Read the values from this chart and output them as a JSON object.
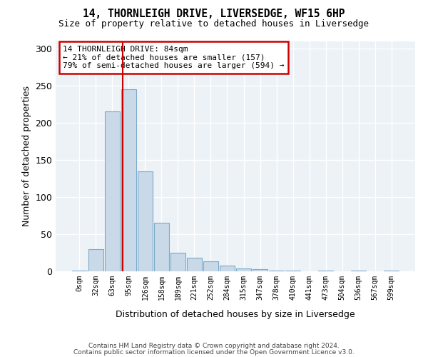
{
  "title": "14, THORNLEIGH DRIVE, LIVERSEDGE, WF15 6HP",
  "subtitle": "Size of property relative to detached houses in Liversedge",
  "xlabel": "Distribution of detached houses by size in Liversedge",
  "ylabel": "Number of detached properties",
  "bar_values": [
    1,
    30,
    215,
    245,
    135,
    65,
    25,
    18,
    13,
    8,
    4,
    3,
    1,
    1,
    0,
    1,
    0,
    1,
    0,
    1
  ],
  "bar_labels": [
    "0sqm",
    "32sqm",
    "63sqm",
    "95sqm",
    "126sqm",
    "158sqm",
    "189sqm",
    "221sqm",
    "252sqm",
    "284sqm",
    "315sqm",
    "347sqm",
    "378sqm",
    "410sqm",
    "441sqm",
    "473sqm",
    "504sqm",
    "536sqm",
    "567sqm",
    "599sqm"
  ],
  "bar_color": "#c9d9e8",
  "bar_edge_color": "#7aaacb",
  "vline_x": 2.65,
  "vline_color": "#cc0000",
  "annotation_text": "14 THORNLEIGH DRIVE: 84sqm\n← 21% of detached houses are smaller (157)\n79% of semi-detached houses are larger (594) →",
  "annotation_box_color": "#ffffff",
  "annotation_box_edge": "#cc0000",
  "ylim": [
    0,
    310
  ],
  "yticks": [
    0,
    50,
    100,
    150,
    200,
    250,
    300
  ],
  "bg_color": "#edf2f7",
  "footer_line1": "Contains HM Land Registry data © Crown copyright and database right 2024.",
  "footer_line2": "Contains public sector information licensed under the Open Government Licence v3.0."
}
